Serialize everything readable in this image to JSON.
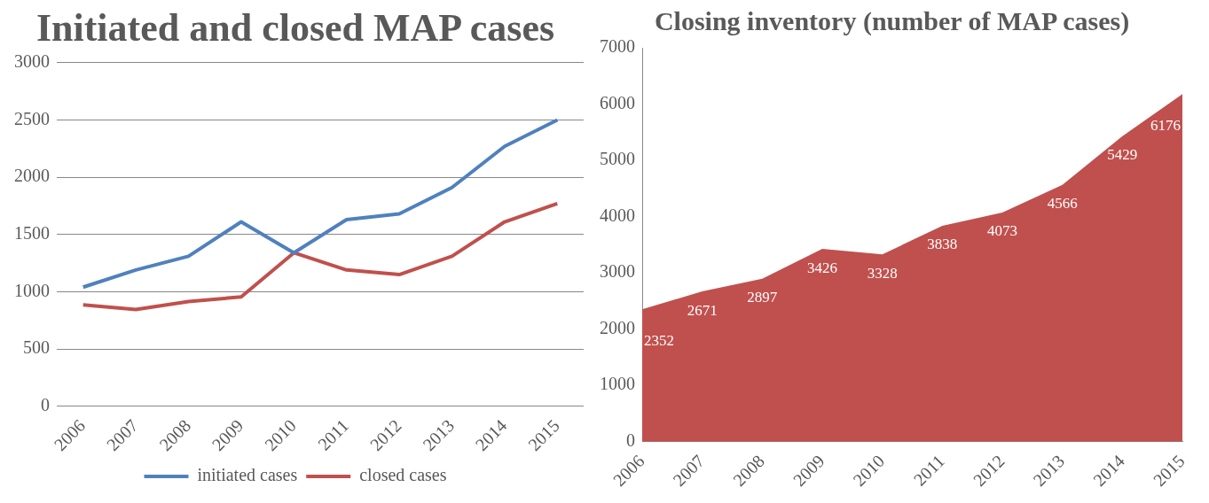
{
  "chart_data": [
    {
      "type": "line",
      "title": "Initiated and closed MAP cases",
      "categories": [
        "2006",
        "2007",
        "2008",
        "2009",
        "2010",
        "2011",
        "2012",
        "2013",
        "2014",
        "2015"
      ],
      "series": [
        {
          "name": "initiated cases",
          "color": "#4f81bd",
          "values": [
            1040,
            1190,
            1310,
            1610,
            1340,
            1630,
            1680,
            1910,
            2270,
            2500
          ]
        },
        {
          "name": "closed cases",
          "color": "#c0504d",
          "values": [
            885,
            845,
            915,
            955,
            1340,
            1190,
            1150,
            1310,
            1610,
            1770
          ]
        }
      ],
      "ylim": [
        0,
        3000
      ],
      "yticks": [
        0,
        500,
        1000,
        1500,
        2000,
        2500,
        3000
      ],
      "grid": "y",
      "legend": "bottom"
    },
    {
      "type": "area",
      "title": "Closing inventory (number of MAP cases)",
      "categories": [
        "2006",
        "2007",
        "2008",
        "2009",
        "2010",
        "2011",
        "2012",
        "2013",
        "2014",
        "2015"
      ],
      "series": [
        {
          "color": "#c0504d",
          "values": [
            2352,
            2671,
            2897,
            3426,
            3328,
            3838,
            4073,
            4566,
            5429,
            6176
          ]
        }
      ],
      "ylim": [
        0,
        7000
      ],
      "yticks": [
        0,
        1000,
        2000,
        3000,
        4000,
        5000,
        6000,
        7000
      ],
      "grid": false,
      "legend": false,
      "data_labels": true
    }
  ]
}
